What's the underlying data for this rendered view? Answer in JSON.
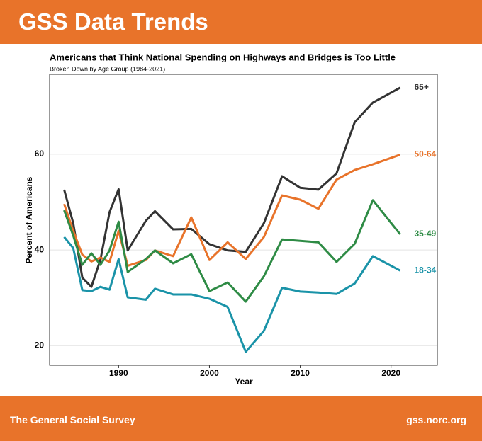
{
  "header": {
    "title": "GSS Data Trends"
  },
  "footer": {
    "left": "The General Social Survey",
    "right": "gss.norc.org"
  },
  "chart_data": {
    "type": "line",
    "title": "Americans that Think National Spending on Highways and Bridges is Too Little",
    "subtitle": "Broken Down by Age Group (1984-2021)",
    "x_label": "Year",
    "y_label": "Percent of Americans",
    "x": [
      1984,
      1985,
      1986,
      1987,
      1988,
      1989,
      1990,
      1991,
      1993,
      1994,
      1996,
      1998,
      2000,
      2002,
      2004,
      2006,
      2008,
      2010,
      2012,
      2014,
      2016,
      2018,
      2021
    ],
    "xlim": [
      1982.4,
      2025.1
    ],
    "xticks": [
      1990,
      2000,
      2010,
      2020
    ],
    "ylim": [
      15.9,
      76.7
    ],
    "yticks": [
      20,
      40,
      60
    ],
    "grid": true,
    "series": [
      {
        "name": "65+",
        "color": "#333333",
        "values": [
          52.6,
          45.6,
          34.2,
          32.3,
          38,
          47.9,
          52.7,
          39.9,
          46.1,
          48.1,
          44.3,
          44.4,
          41.2,
          39.9,
          39.6,
          45.6,
          55.4,
          53,
          52.6,
          56,
          66.7,
          70.8,
          73.9
        ]
      },
      {
        "name": "50-64",
        "color": "#e8732a",
        "values": [
          49.6,
          44,
          39,
          37.6,
          38.4,
          37.5,
          44,
          36.7,
          37.9,
          39.9,
          38.7,
          46.8,
          37.9,
          41.6,
          38.1,
          42.7,
          51.4,
          50.5,
          48.6,
          54.7,
          56.7,
          57.9,
          59.9
        ]
      },
      {
        "name": "35-49",
        "color": "#2e8b45",
        "values": [
          48.3,
          43,
          36.9,
          39.3,
          36.9,
          39.9,
          45.9,
          35.4,
          38.1,
          39.9,
          37.2,
          39.1,
          31.4,
          33.2,
          29.2,
          34.5,
          42.2,
          41.9,
          41.6,
          37.5,
          41.3,
          50.4,
          43.3
        ]
      },
      {
        "name": "18-34",
        "color": "#1a93a8",
        "values": [
          42.7,
          40.4,
          31.6,
          31.4,
          32.3,
          31.7,
          38.1,
          30.1,
          29.6,
          31.9,
          30.7,
          30.7,
          29.8,
          28.1,
          18.7,
          23.1,
          32.1,
          31.3,
          31.1,
          30.8,
          33,
          38.7,
          35.7
        ]
      }
    ]
  }
}
